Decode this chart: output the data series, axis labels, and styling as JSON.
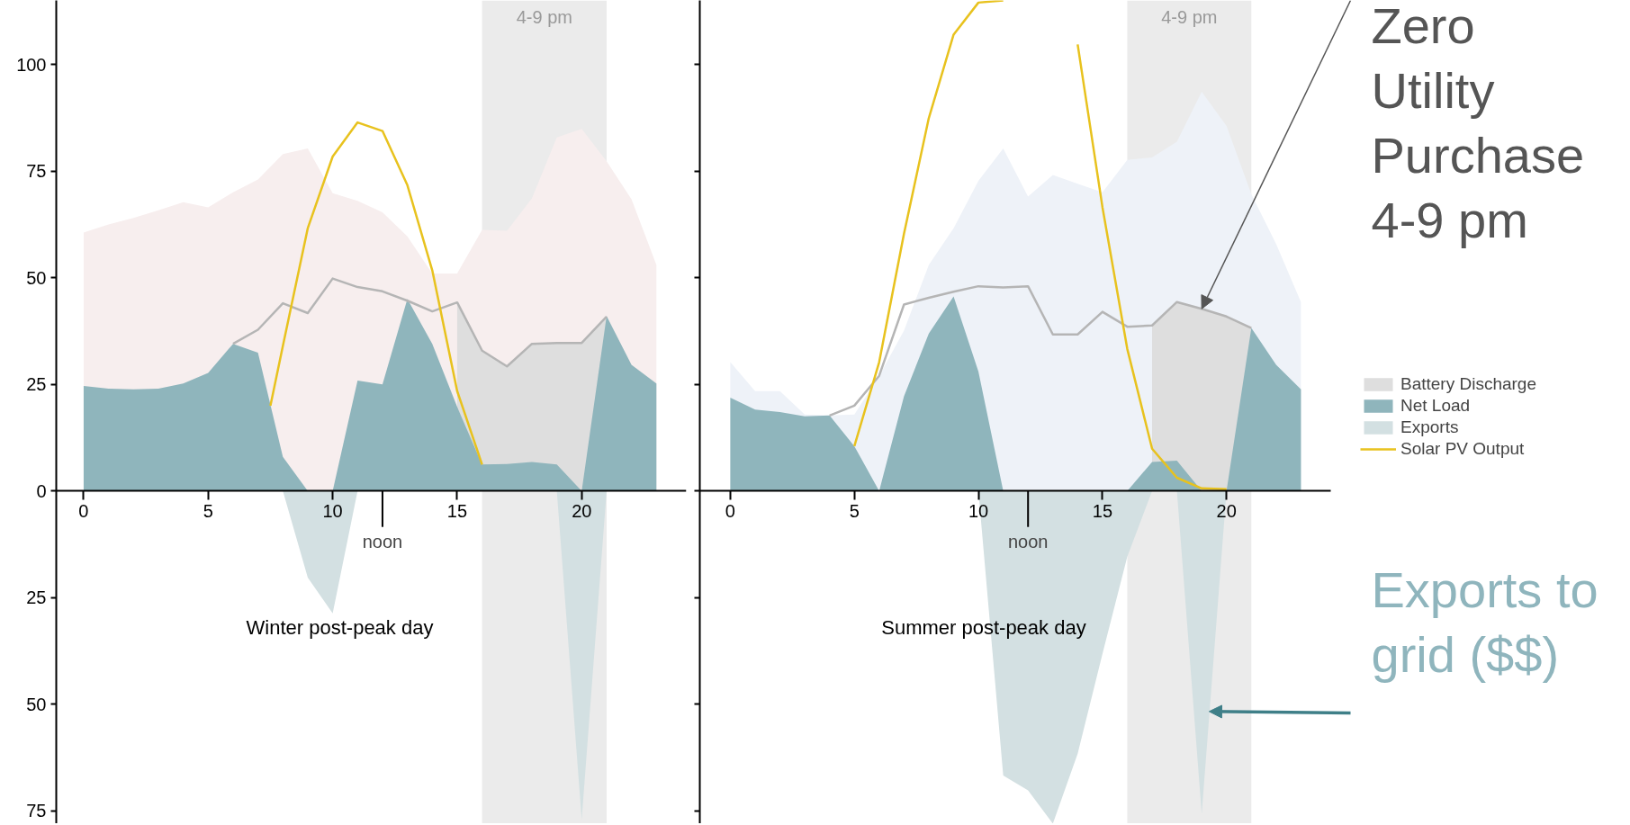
{
  "chart_data": [
    {
      "type": "area",
      "title": "Winter post-peak day",
      "x": [
        0,
        1,
        2,
        3,
        4,
        5,
        6,
        7,
        8,
        9,
        10,
        11,
        12,
        13,
        14,
        15,
        16,
        17,
        18,
        19,
        20,
        21,
        22,
        23
      ],
      "xlim": [
        -1.1,
        24.2
      ],
      "ylim": [
        -78,
        115
      ],
      "xticks": [
        0,
        5,
        10,
        15,
        20
      ],
      "yticks": [
        {
          "value": -75,
          "label": "75"
        },
        {
          "value": -50,
          "label": "50"
        },
        {
          "value": -25,
          "label": "25"
        },
        0,
        25,
        50,
        75,
        100
      ],
      "grid": false,
      "legend": false,
      "series": [
        {
          "color": "#f7eeee",
          "values": [
            60.6,
            62.5,
            64,
            65.8,
            67.7,
            66.5,
            70,
            73,
            79,
            80.3,
            69.8,
            68,
            65.3,
            59.7,
            51,
            51,
            61.2,
            61,
            68.6,
            82.9,
            84.9,
            77.3,
            68.4,
            53
          ]
        },
        {
          "color": "#dedede",
          "values": [
            null,
            null,
            null,
            null,
            null,
            null,
            null,
            null,
            null,
            null,
            null,
            null,
            null,
            null,
            null,
            44.2,
            32.9,
            29.2,
            34.5,
            34.7,
            34.7,
            40.9,
            null,
            null
          ]
        },
        {
          "color": "#8fb5bc",
          "values": [
            24.6,
            24,
            23.8,
            24,
            25.2,
            27.7,
            34.5,
            32.4,
            8,
            0,
            0,
            25.9,
            25,
            45,
            34.5,
            19.7,
            6.2,
            6.3,
            6.8,
            6.2,
            0,
            41,
            29.6,
            25.2
          ]
        },
        {
          "color": "#d3e0e2",
          "values": [
            0,
            0,
            0,
            0,
            0,
            0,
            0,
            0,
            0,
            -20.3,
            -28.7,
            0,
            0,
            0,
            0,
            0,
            0,
            0,
            0,
            0,
            -77,
            0,
            0,
            0
          ]
        },
        {
          "type": "line",
          "color": "#b5b5b5",
          "x": [
            6,
            7,
            8,
            9,
            10,
            11,
            12,
            13,
            14,
            15,
            16,
            17,
            18,
            19,
            20,
            21
          ],
          "values": [
            34.5,
            37.8,
            44,
            41.7,
            49.8,
            47.8,
            46.8,
            44.6,
            42.1,
            44.2,
            32.9,
            29.2,
            34.5,
            34.7,
            34.7,
            40.9
          ]
        },
        {
          "type": "line",
          "color": "#e8c21e",
          "x": [
            7.5,
            8,
            9,
            10,
            11,
            12,
            13,
            14,
            15,
            16
          ],
          "values": [
            20,
            34,
            61.6,
            78.4,
            86.4,
            84.4,
            71.7,
            51.7,
            23.4,
            6.2
          ]
        }
      ],
      "bands": [
        {
          "axis": "x",
          "from": 16,
          "to": 21,
          "label": "4-9 pm",
          "color": "#ebebeb"
        }
      ],
      "annotations": [
        {
          "text": "noon",
          "x": 12,
          "y": 0
        }
      ]
    },
    {
      "type": "area",
      "title": "Summer post-peak day",
      "x": [
        0,
        1,
        2,
        3,
        4,
        5,
        6,
        7,
        8,
        9,
        10,
        11,
        12,
        13,
        14,
        15,
        16,
        17,
        18,
        19,
        20,
        21,
        22,
        23
      ],
      "xlim": [
        -1.23,
        24.2
      ],
      "ylim": [
        -78,
        115
      ],
      "yticks": [
        {
          "value": -75,
          "label": "75"
        },
        {
          "value": -50,
          "label": "50"
        },
        {
          "value": -25,
          "label": "25"
        },
        0,
        25,
        50,
        75,
        100
      ],
      "xticks": [
        0,
        5,
        10,
        15,
        20
      ],
      "tick_labels": "x",
      "grid": false,
      "legend": "right",
      "series": [
        {
          "color": "#eef2f8",
          "values": [
            30.2,
            23.4,
            23.4,
            17.9,
            17.7,
            17.9,
            27,
            37.6,
            53,
            61.6,
            72.7,
            80.3,
            69,
            74.1,
            72,
            70,
            77.6,
            78.2,
            81.9,
            93.6,
            85.6,
            69.6,
            57.9,
            44.3
          ]
        },
        {
          "name": "Battery Discharge",
          "color": "#dedede",
          "values": [
            null,
            null,
            null,
            null,
            null,
            null,
            null,
            null,
            null,
            null,
            null,
            null,
            null,
            null,
            null,
            null,
            null,
            38.8,
            44.3,
            42.7,
            40.9,
            38.2,
            null,
            null
          ]
        },
        {
          "name": "Net Load",
          "color": "#8fb5bc",
          "values": [
            21.9,
            19.1,
            18.5,
            17.5,
            17.7,
            10.5,
            0,
            22.2,
            36.9,
            45.6,
            28,
            0,
            0,
            0,
            0,
            0,
            0,
            6.8,
            7.1,
            0,
            0,
            38.2,
            29.6,
            23.8
          ]
        },
        {
          "name": "Exports",
          "color": "#d3e0e2",
          "values": [
            0,
            0,
            0,
            0,
            0,
            0,
            0,
            0,
            0,
            0,
            0,
            -66.7,
            -70.2,
            -78,
            -61.6,
            -38.2,
            -15.4,
            0,
            0,
            -75.7,
            0,
            0,
            0,
            0
          ]
        },
        {
          "type": "line",
          "color": "#b5b5b5",
          "x": [
            4,
            5,
            6,
            7,
            8,
            9,
            10,
            11,
            12,
            13,
            14,
            15,
            16,
            17,
            18,
            19,
            20,
            21
          ],
          "values": [
            17.7,
            20,
            27,
            43.7,
            45.3,
            46.7,
            48,
            47.7,
            48,
            36.7,
            36.7,
            42,
            38.5,
            38.8,
            44.3,
            42.7,
            40.9,
            38.2
          ]
        },
        {
          "type": "line",
          "name": "Solar PV Output",
          "color": "#e8c21e",
          "x": [
            5,
            6,
            7,
            8,
            9,
            10,
            11,
            12,
            13,
            14,
            15,
            16,
            17,
            18,
            19,
            20
          ],
          "values": [
            10.5,
            30.2,
            60.3,
            87.4,
            107,
            114.5,
            115,
            null,
            null,
            104.7,
            66.5,
            33.3,
            9.9,
            3.1,
            0.6,
            0.4
          ]
        }
      ],
      "bands": [
        {
          "axis": "x",
          "from": 16,
          "to": 21,
          "label": "4-9 pm",
          "color": "#ebebeb"
        }
      ],
      "annotations": [
        {
          "text": "noon",
          "x": 12,
          "y": 0
        },
        {
          "text": "Zero Utility Purchase 4-9 pm",
          "x": 19,
          "y": 42.7
        },
        {
          "text": "Exports to grid ($$)",
          "x": 19.3,
          "y": -51.7
        }
      ]
    }
  ]
}
